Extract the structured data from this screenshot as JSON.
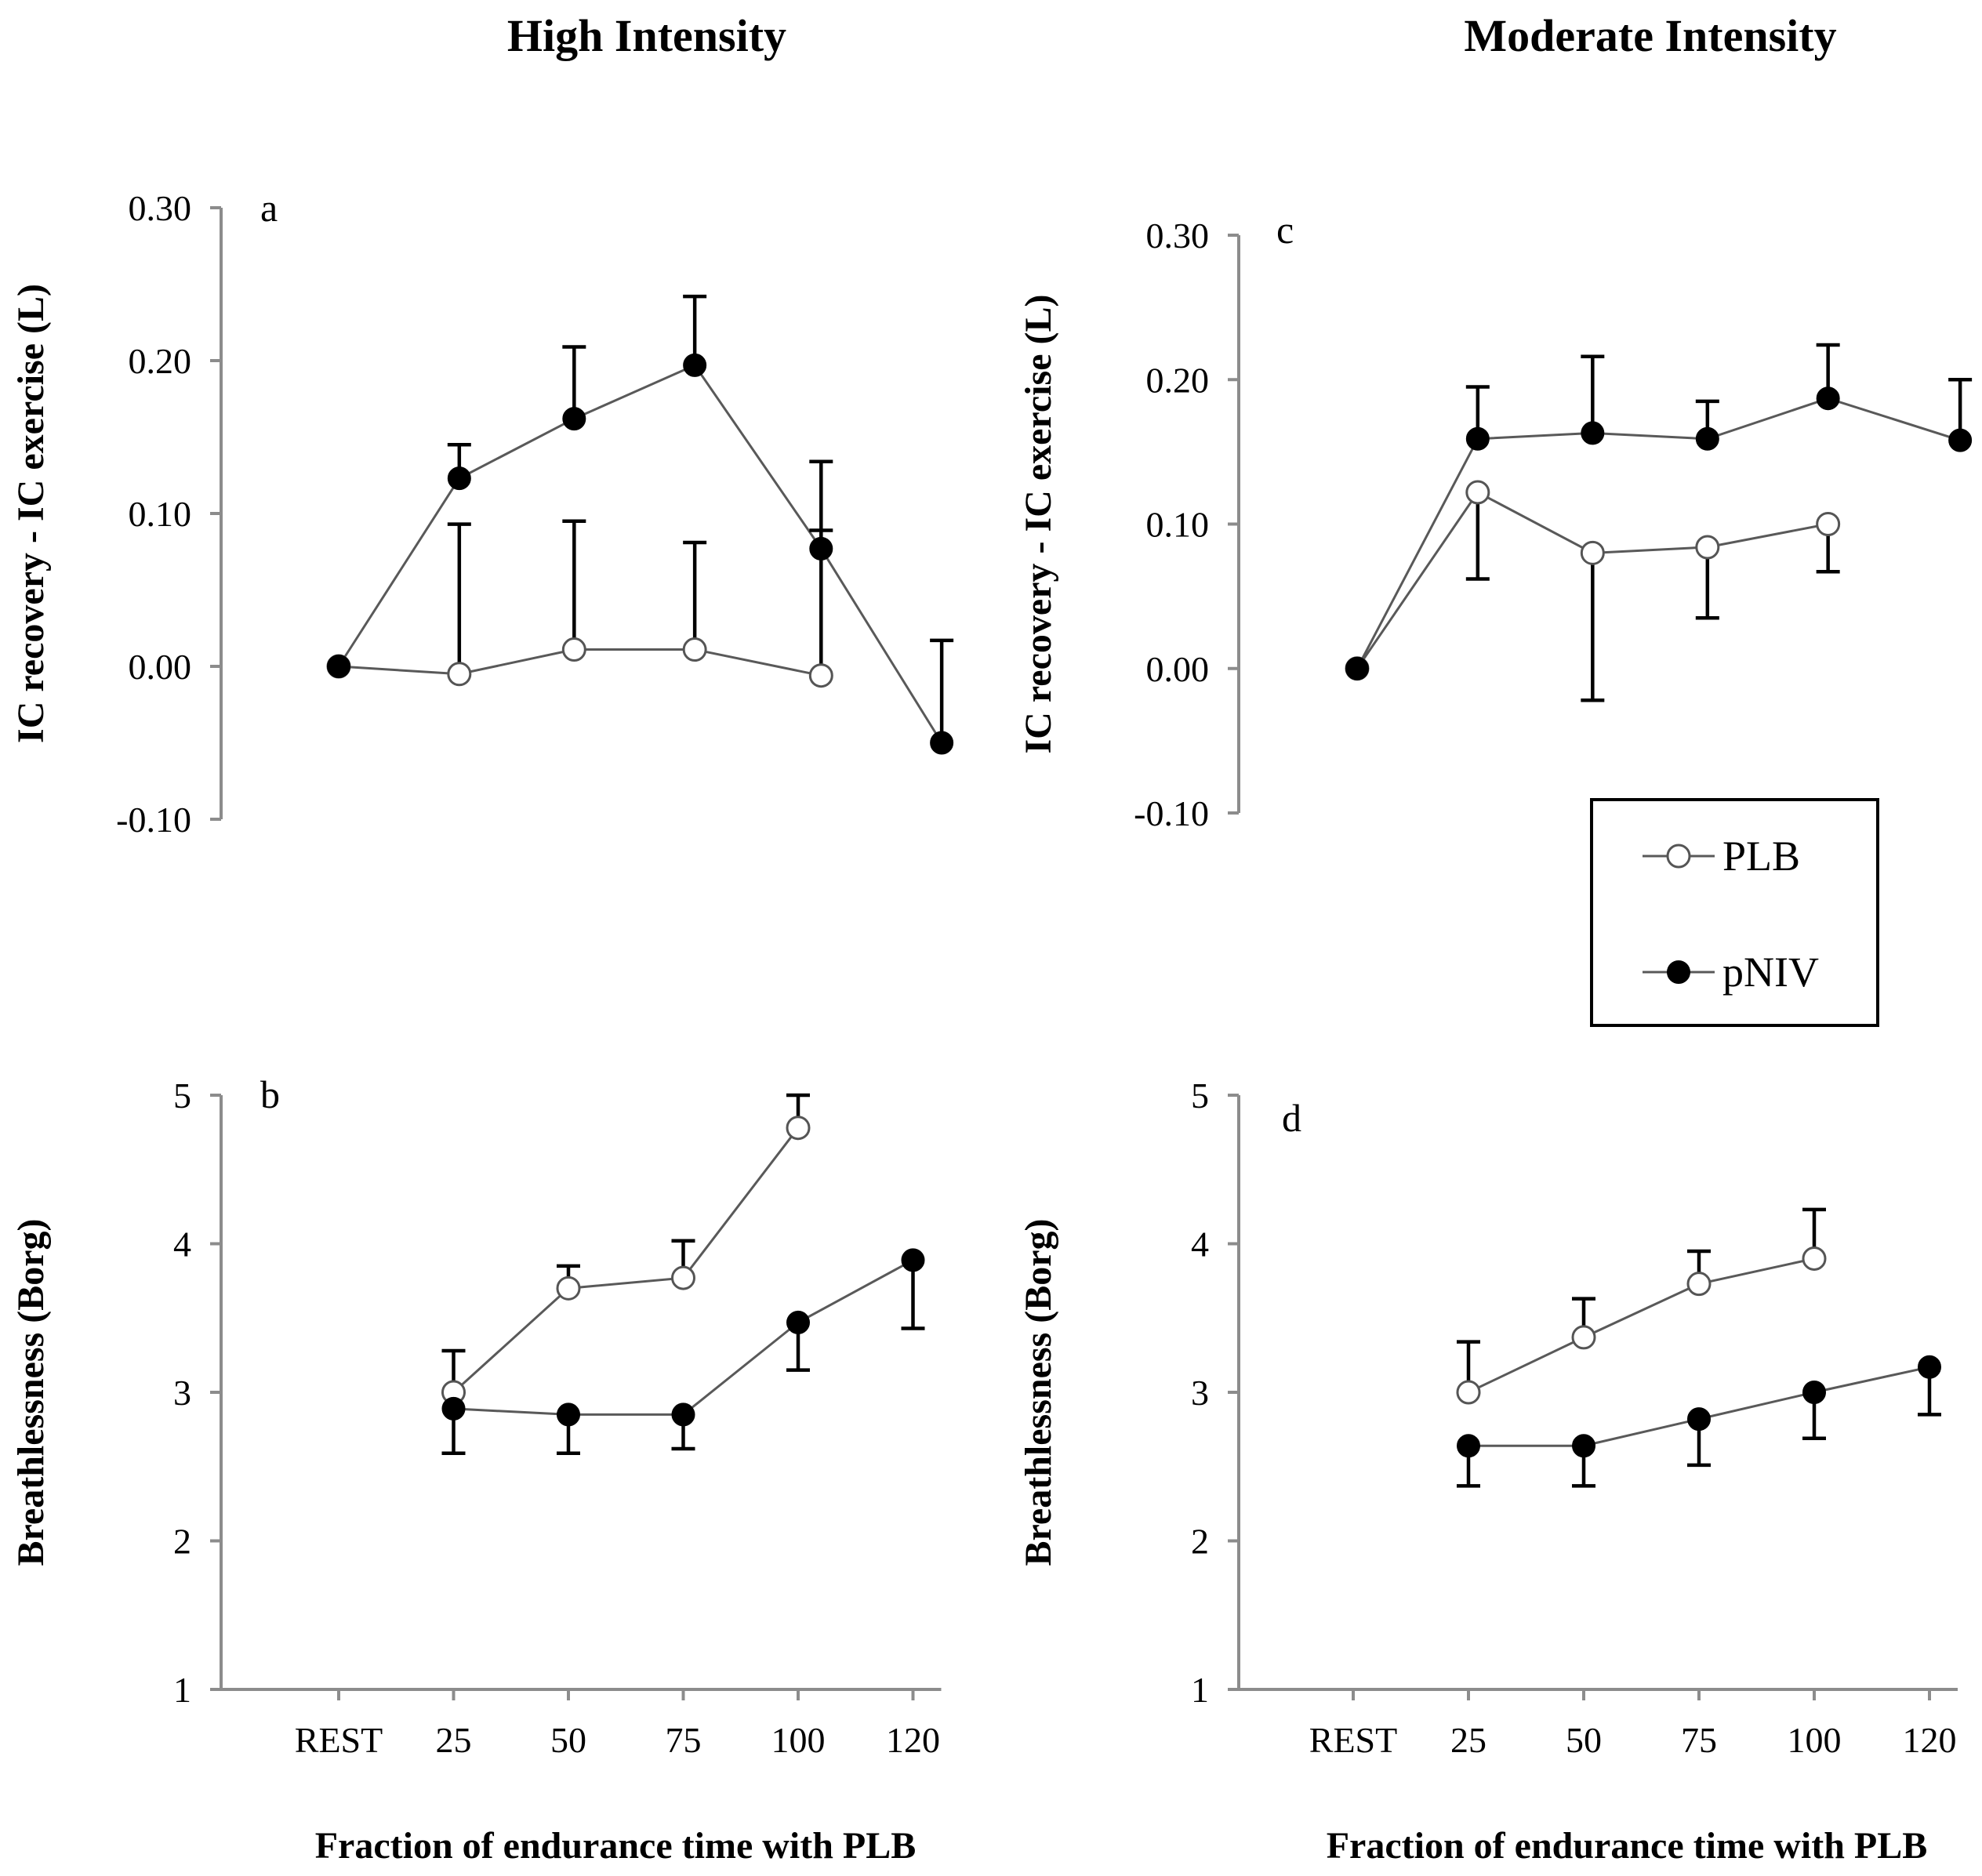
{
  "figure": {
    "column_titles": [
      "High Intensity",
      "Moderate Intensity"
    ],
    "xlabel": "Fraction of endurance time with PLB",
    "legend": {
      "items": [
        {
          "key": "PLB",
          "label": "PLB",
          "marker": "open-circle"
        },
        {
          "key": "pNIV",
          "label": "pNIV",
          "marker": "filled-circle"
        }
      ]
    },
    "colors": {
      "line": "#595959",
      "open_marker_fill": "#ffffff",
      "filled_marker": "#000000",
      "error_bar": "#000000"
    }
  },
  "chart_data": [
    {
      "id": "a",
      "panel_letter": "a",
      "type": "line",
      "ylabel": "IC recovery - IC exercise (L)",
      "ylim": [
        -0.1,
        0.3
      ],
      "yticks": [
        "-0.10",
        "0.00",
        "0.10",
        "0.20",
        "0.30"
      ],
      "categories": [
        "REST",
        "25",
        "50",
        "75",
        "100",
        "120"
      ],
      "show_xtick_labels": false,
      "series": [
        {
          "name": "PLB",
          "marker": "open",
          "points": [
            [
              0,
              0.0
            ],
            [
              1.05,
              -0.005
            ],
            [
              2.05,
              0.011
            ],
            [
              3.1,
              0.011
            ],
            [
              4.2,
              -0.006
            ]
          ],
          "error_low": [
            null,
            0.093,
            0.095,
            0.081,
            0.089
          ]
        },
        {
          "name": "pNIV",
          "marker": "filled",
          "points": [
            [
              0,
              0.0
            ],
            [
              1.05,
              0.123
            ],
            [
              2.05,
              0.162
            ],
            [
              3.1,
              0.197
            ],
            [
              4.2,
              0.077
            ],
            [
              5.25,
              -0.05
            ]
          ],
          "error_high": [
            null,
            0.145,
            0.209,
            0.242,
            0.134,
            0.017
          ]
        }
      ]
    },
    {
      "id": "b",
      "panel_letter": "b",
      "type": "line",
      "ylabel": "Breathlessness (Borg)",
      "ylim": [
        1,
        5
      ],
      "yticks": [
        "1",
        "2",
        "3",
        "4",
        "5"
      ],
      "categories": [
        "REST",
        "25",
        "50",
        "75",
        "100",
        "120"
      ],
      "show_xtick_labels": true,
      "series": [
        {
          "name": "PLB",
          "marker": "open",
          "points": [
            [
              1,
              3.0
            ],
            [
              2,
              3.7
            ],
            [
              3,
              3.77
            ],
            [
              4,
              4.78
            ]
          ],
          "error_high": [
            3.28,
            3.85,
            4.02,
            5.0
          ]
        },
        {
          "name": "pNIV",
          "marker": "filled",
          "points": [
            [
              1,
              2.89
            ],
            [
              2,
              2.85
            ],
            [
              3,
              2.85
            ],
            [
              4,
              3.47
            ],
            [
              5,
              3.89
            ]
          ],
          "error_low": [
            2.59,
            2.59,
            2.62,
            3.15,
            3.43
          ]
        }
      ]
    },
    {
      "id": "c",
      "panel_letter": "c",
      "type": "line",
      "ylabel": "IC recovery - IC exercise (L)",
      "ylim": [
        -0.1,
        0.3
      ],
      "yticks": [
        "-0.10",
        "0.00",
        "0.10",
        "0.20",
        "0.30"
      ],
      "categories": [
        "REST",
        "25",
        "50",
        "75",
        "100",
        "120"
      ],
      "show_xtick_labels": false,
      "series": [
        {
          "name": "PLB",
          "marker": "open",
          "points": [
            [
              0,
              0.0
            ],
            [
              1.05,
              0.122
            ],
            [
              2.05,
              0.08
            ],
            [
              3.05,
              0.084
            ],
            [
              4.1,
              0.1
            ]
          ],
          "error_low": [
            null,
            0.062,
            -0.022,
            0.035,
            0.067
          ]
        },
        {
          "name": "pNIV",
          "marker": "filled",
          "points": [
            [
              0,
              0.0
            ],
            [
              1.05,
              0.159
            ],
            [
              2.05,
              0.163
            ],
            [
              3.05,
              0.159
            ],
            [
              4.1,
              0.187
            ],
            [
              5.25,
              0.158
            ]
          ],
          "error_high": [
            null,
            0.195,
            0.216,
            0.185,
            0.224,
            0.2
          ]
        }
      ]
    },
    {
      "id": "d",
      "panel_letter": "d",
      "type": "line",
      "ylabel": "Breathlessness (Borg)",
      "ylim": [
        1,
        5
      ],
      "yticks": [
        "1",
        "2",
        "3",
        "4",
        "5"
      ],
      "categories": [
        "REST",
        "25",
        "50",
        "75",
        "100",
        "120"
      ],
      "show_xtick_labels": true,
      "series": [
        {
          "name": "PLB",
          "marker": "open",
          "points": [
            [
              1,
              3.0
            ],
            [
              2,
              3.37
            ],
            [
              3,
              3.73
            ],
            [
              4,
              3.9
            ]
          ],
          "error_high": [
            3.34,
            3.63,
            3.95,
            4.23
          ]
        },
        {
          "name": "pNIV",
          "marker": "filled",
          "points": [
            [
              1,
              2.64
            ],
            [
              2,
              2.64
            ],
            [
              3,
              2.82
            ],
            [
              4,
              3.0
            ],
            [
              5,
              3.17
            ]
          ],
          "error_low": [
            2.37,
            2.37,
            2.51,
            2.69,
            2.85
          ]
        }
      ]
    }
  ]
}
